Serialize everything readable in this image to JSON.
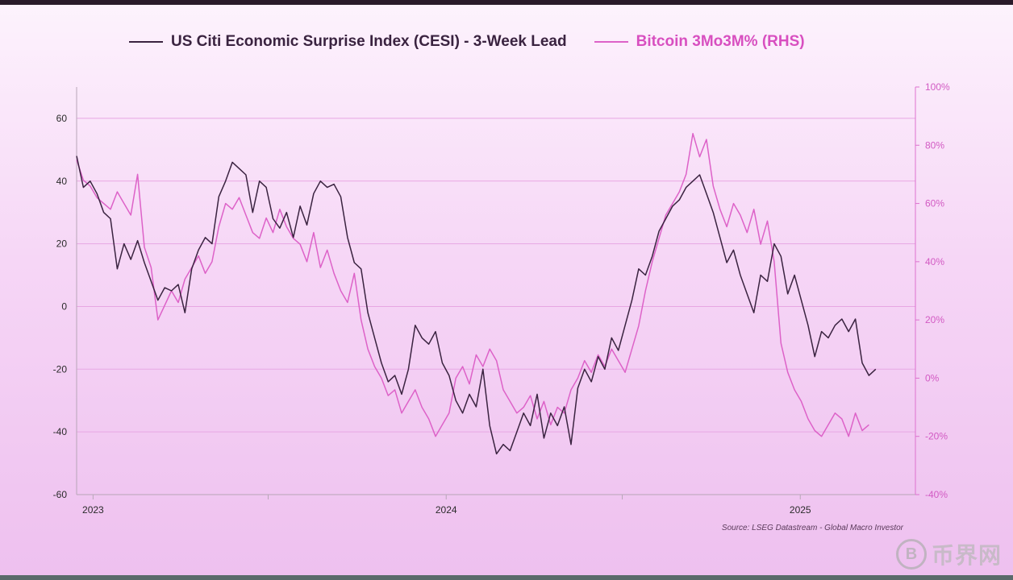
{
  "legend": {
    "cesi_label": "US Citi Economic Surprise Index (CESI) - 3-Week Lead",
    "btc_label": "Bitcoin 3Mo3M% (RHS)"
  },
  "source": "Source: LSEG Datastream - Global Macro Investor",
  "watermark": {
    "logo_glyph": "B",
    "text": "币界网"
  },
  "colors": {
    "cesi": "#3a2340",
    "btc": "#dd62c8",
    "grid": "#e7a7e3",
    "axis": "#b8a6b8",
    "right_axis": "#dd72cf",
    "left_tick_text": "#2b2b2b",
    "right_tick_text": "#d25ac3"
  },
  "chart_data": {
    "type": "line",
    "title": "",
    "x_domain": [
      "2022-12-15",
      "2025-04-30"
    ],
    "x_ticks": [
      {
        "date": "2023-01-01",
        "label": "2023"
      },
      {
        "date": "2024-01-01",
        "label": "2024"
      },
      {
        "date": "2025-01-01",
        "label": "2025"
      }
    ],
    "minor_x_ticks": [
      "2023-01-01",
      "2023-07-01",
      "2024-01-01",
      "2024-07-01",
      "2025-01-01"
    ],
    "y_left": {
      "min": -60,
      "max": 70,
      "ticks": [
        -60,
        -40,
        -20,
        0,
        20,
        40,
        60
      ]
    },
    "y_right": {
      "min": -40,
      "max": 100,
      "ticks": [
        -40,
        -20,
        0,
        20,
        40,
        60,
        80,
        100
      ],
      "tick_suffix": "%"
    },
    "grid_left_values": [
      -40,
      -20,
      0,
      20,
      40,
      60
    ],
    "series": [
      {
        "name": "US Citi Economic Surprise Index (CESI) - 3-Week Lead",
        "axis": "left",
        "points": [
          [
            "2022-12-15",
            48
          ],
          [
            "2022-12-22",
            38
          ],
          [
            "2022-12-29",
            40
          ],
          [
            "2023-01-05",
            36
          ],
          [
            "2023-01-12",
            30
          ],
          [
            "2023-01-19",
            28
          ],
          [
            "2023-01-26",
            12
          ],
          [
            "2023-02-02",
            20
          ],
          [
            "2023-02-09",
            15
          ],
          [
            "2023-02-16",
            21
          ],
          [
            "2023-02-23",
            14
          ],
          [
            "2023-03-02",
            8
          ],
          [
            "2023-03-09",
            2
          ],
          [
            "2023-03-16",
            6
          ],
          [
            "2023-03-23",
            5
          ],
          [
            "2023-03-30",
            7
          ],
          [
            "2023-04-06",
            -2
          ],
          [
            "2023-04-13",
            12
          ],
          [
            "2023-04-20",
            18
          ],
          [
            "2023-04-27",
            22
          ],
          [
            "2023-05-04",
            20
          ],
          [
            "2023-05-11",
            35
          ],
          [
            "2023-05-18",
            40
          ],
          [
            "2023-05-25",
            46
          ],
          [
            "2023-06-01",
            44
          ],
          [
            "2023-06-08",
            42
          ],
          [
            "2023-06-15",
            30
          ],
          [
            "2023-06-22",
            40
          ],
          [
            "2023-06-29",
            38
          ],
          [
            "2023-07-06",
            28
          ],
          [
            "2023-07-13",
            25
          ],
          [
            "2023-07-20",
            30
          ],
          [
            "2023-07-27",
            22
          ],
          [
            "2023-08-03",
            32
          ],
          [
            "2023-08-10",
            26
          ],
          [
            "2023-08-17",
            36
          ],
          [
            "2023-08-24",
            40
          ],
          [
            "2023-08-31",
            38
          ],
          [
            "2023-09-07",
            39
          ],
          [
            "2023-09-14",
            35
          ],
          [
            "2023-09-21",
            22
          ],
          [
            "2023-09-28",
            14
          ],
          [
            "2023-10-05",
            12
          ],
          [
            "2023-10-12",
            -2
          ],
          [
            "2023-10-19",
            -10
          ],
          [
            "2023-10-26",
            -18
          ],
          [
            "2023-11-02",
            -24
          ],
          [
            "2023-11-09",
            -22
          ],
          [
            "2023-11-16",
            -28
          ],
          [
            "2023-11-23",
            -20
          ],
          [
            "2023-11-30",
            -6
          ],
          [
            "2023-12-07",
            -10
          ],
          [
            "2023-12-14",
            -12
          ],
          [
            "2023-12-21",
            -8
          ],
          [
            "2023-12-28",
            -18
          ],
          [
            "2024-01-04",
            -22
          ],
          [
            "2024-01-11",
            -30
          ],
          [
            "2024-01-18",
            -34
          ],
          [
            "2024-01-25",
            -28
          ],
          [
            "2024-02-01",
            -32
          ],
          [
            "2024-02-08",
            -20
          ],
          [
            "2024-02-15",
            -38
          ],
          [
            "2024-02-22",
            -47
          ],
          [
            "2024-02-29",
            -44
          ],
          [
            "2024-03-07",
            -46
          ],
          [
            "2024-03-14",
            -40
          ],
          [
            "2024-03-21",
            -34
          ],
          [
            "2024-03-28",
            -38
          ],
          [
            "2024-04-04",
            -28
          ],
          [
            "2024-04-11",
            -42
          ],
          [
            "2024-04-18",
            -34
          ],
          [
            "2024-04-25",
            -38
          ],
          [
            "2024-05-02",
            -32
          ],
          [
            "2024-05-09",
            -44
          ],
          [
            "2024-05-16",
            -26
          ],
          [
            "2024-05-23",
            -20
          ],
          [
            "2024-05-30",
            -24
          ],
          [
            "2024-06-06",
            -16
          ],
          [
            "2024-06-13",
            -20
          ],
          [
            "2024-06-20",
            -10
          ],
          [
            "2024-06-27",
            -14
          ],
          [
            "2024-07-04",
            -6
          ],
          [
            "2024-07-11",
            2
          ],
          [
            "2024-07-18",
            12
          ],
          [
            "2024-07-25",
            10
          ],
          [
            "2024-08-01",
            16
          ],
          [
            "2024-08-08",
            24
          ],
          [
            "2024-08-15",
            28
          ],
          [
            "2024-08-22",
            32
          ],
          [
            "2024-08-29",
            34
          ],
          [
            "2024-09-05",
            38
          ],
          [
            "2024-09-12",
            40
          ],
          [
            "2024-09-19",
            42
          ],
          [
            "2024-09-26",
            36
          ],
          [
            "2024-10-03",
            30
          ],
          [
            "2024-10-10",
            22
          ],
          [
            "2024-10-17",
            14
          ],
          [
            "2024-10-24",
            18
          ],
          [
            "2024-10-31",
            10
          ],
          [
            "2024-11-07",
            4
          ],
          [
            "2024-11-14",
            -2
          ],
          [
            "2024-11-21",
            10
          ],
          [
            "2024-11-28",
            8
          ],
          [
            "2024-12-05",
            20
          ],
          [
            "2024-12-12",
            16
          ],
          [
            "2024-12-19",
            4
          ],
          [
            "2024-12-26",
            10
          ],
          [
            "2025-01-02",
            2
          ],
          [
            "2025-01-09",
            -6
          ],
          [
            "2025-01-16",
            -16
          ],
          [
            "2025-01-23",
            -8
          ],
          [
            "2025-01-30",
            -10
          ],
          [
            "2025-02-06",
            -6
          ],
          [
            "2025-02-13",
            -4
          ],
          [
            "2025-02-20",
            -8
          ],
          [
            "2025-02-27",
            -4
          ],
          [
            "2025-03-06",
            -18
          ],
          [
            "2025-03-13",
            -22
          ],
          [
            "2025-03-20",
            -20
          ]
        ]
      },
      {
        "name": "Bitcoin 3Mo3M% (RHS)",
        "axis": "right",
        "points": [
          [
            "2022-12-15",
            75
          ],
          [
            "2022-12-22",
            68
          ],
          [
            "2022-12-29",
            66
          ],
          [
            "2023-01-05",
            62
          ],
          [
            "2023-01-12",
            60
          ],
          [
            "2023-01-19",
            58
          ],
          [
            "2023-01-26",
            64
          ],
          [
            "2023-02-02",
            60
          ],
          [
            "2023-02-09",
            56
          ],
          [
            "2023-02-16",
            70
          ],
          [
            "2023-02-23",
            45
          ],
          [
            "2023-03-02",
            38
          ],
          [
            "2023-03-09",
            20
          ],
          [
            "2023-03-16",
            25
          ],
          [
            "2023-03-23",
            30
          ],
          [
            "2023-03-30",
            26
          ],
          [
            "2023-04-06",
            34
          ],
          [
            "2023-04-13",
            38
          ],
          [
            "2023-04-20",
            42
          ],
          [
            "2023-04-27",
            36
          ],
          [
            "2023-05-04",
            40
          ],
          [
            "2023-05-11",
            52
          ],
          [
            "2023-05-18",
            60
          ],
          [
            "2023-05-25",
            58
          ],
          [
            "2023-06-01",
            62
          ],
          [
            "2023-06-08",
            56
          ],
          [
            "2023-06-15",
            50
          ],
          [
            "2023-06-22",
            48
          ],
          [
            "2023-06-29",
            55
          ],
          [
            "2023-07-06",
            50
          ],
          [
            "2023-07-13",
            58
          ],
          [
            "2023-07-20",
            52
          ],
          [
            "2023-07-27",
            48
          ],
          [
            "2023-08-03",
            46
          ],
          [
            "2023-08-10",
            40
          ],
          [
            "2023-08-17",
            50
          ],
          [
            "2023-08-24",
            38
          ],
          [
            "2023-08-31",
            44
          ],
          [
            "2023-09-07",
            36
          ],
          [
            "2023-09-14",
            30
          ],
          [
            "2023-09-21",
            26
          ],
          [
            "2023-09-28",
            36
          ],
          [
            "2023-10-05",
            20
          ],
          [
            "2023-10-12",
            10
          ],
          [
            "2023-10-19",
            4
          ],
          [
            "2023-10-26",
            0
          ],
          [
            "2023-11-02",
            -6
          ],
          [
            "2023-11-09",
            -4
          ],
          [
            "2023-11-16",
            -12
          ],
          [
            "2023-11-23",
            -8
          ],
          [
            "2023-11-30",
            -4
          ],
          [
            "2023-12-07",
            -10
          ],
          [
            "2023-12-14",
            -14
          ],
          [
            "2023-12-21",
            -20
          ],
          [
            "2023-12-28",
            -16
          ],
          [
            "2024-01-04",
            -12
          ],
          [
            "2024-01-11",
            0
          ],
          [
            "2024-01-18",
            4
          ],
          [
            "2024-01-25",
            -2
          ],
          [
            "2024-02-01",
            8
          ],
          [
            "2024-02-08",
            4
          ],
          [
            "2024-02-15",
            10
          ],
          [
            "2024-02-22",
            6
          ],
          [
            "2024-02-29",
            -4
          ],
          [
            "2024-03-07",
            -8
          ],
          [
            "2024-03-14",
            -12
          ],
          [
            "2024-03-21",
            -10
          ],
          [
            "2024-03-28",
            -6
          ],
          [
            "2024-04-04",
            -14
          ],
          [
            "2024-04-11",
            -8
          ],
          [
            "2024-04-18",
            -16
          ],
          [
            "2024-04-25",
            -10
          ],
          [
            "2024-05-02",
            -12
          ],
          [
            "2024-05-09",
            -4
          ],
          [
            "2024-05-16",
            0
          ],
          [
            "2024-05-23",
            6
          ],
          [
            "2024-05-30",
            2
          ],
          [
            "2024-06-06",
            8
          ],
          [
            "2024-06-13",
            4
          ],
          [
            "2024-06-20",
            10
          ],
          [
            "2024-06-27",
            6
          ],
          [
            "2024-07-04",
            2
          ],
          [
            "2024-07-11",
            10
          ],
          [
            "2024-07-18",
            18
          ],
          [
            "2024-07-25",
            30
          ],
          [
            "2024-08-01",
            40
          ],
          [
            "2024-08-08",
            48
          ],
          [
            "2024-08-15",
            56
          ],
          [
            "2024-08-22",
            60
          ],
          [
            "2024-08-29",
            64
          ],
          [
            "2024-09-05",
            70
          ],
          [
            "2024-09-12",
            84
          ],
          [
            "2024-09-19",
            76
          ],
          [
            "2024-09-26",
            82
          ],
          [
            "2024-10-03",
            66
          ],
          [
            "2024-10-10",
            58
          ],
          [
            "2024-10-17",
            52
          ],
          [
            "2024-10-24",
            60
          ],
          [
            "2024-10-31",
            56
          ],
          [
            "2024-11-07",
            50
          ],
          [
            "2024-11-14",
            58
          ],
          [
            "2024-11-21",
            46
          ],
          [
            "2024-11-28",
            54
          ],
          [
            "2024-12-05",
            40
          ],
          [
            "2024-12-12",
            12
          ],
          [
            "2024-12-19",
            2
          ],
          [
            "2024-12-26",
            -4
          ],
          [
            "2025-01-02",
            -8
          ],
          [
            "2025-01-09",
            -14
          ],
          [
            "2025-01-16",
            -18
          ],
          [
            "2025-01-23",
            -20
          ],
          [
            "2025-01-30",
            -16
          ],
          [
            "2025-02-06",
            -12
          ],
          [
            "2025-02-13",
            -14
          ],
          [
            "2025-02-20",
            -20
          ],
          [
            "2025-02-27",
            -12
          ],
          [
            "2025-03-06",
            -18
          ],
          [
            "2025-03-13",
            -16
          ]
        ]
      }
    ]
  }
}
